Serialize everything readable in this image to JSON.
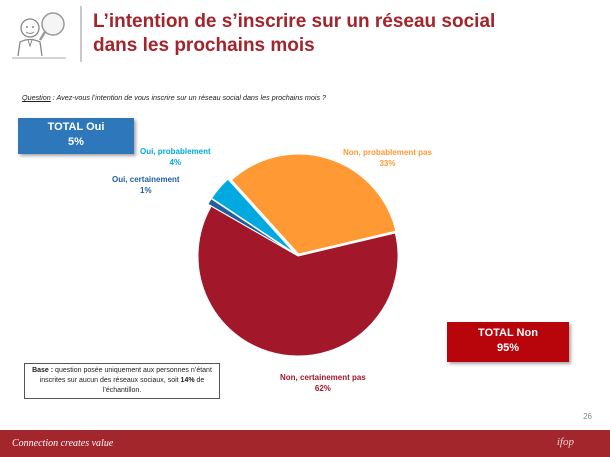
{
  "title": {
    "line1": "L’intention de s’inscrire sur un réseau social",
    "line2": "dans les prochains mois"
  },
  "question": {
    "label": "Question",
    "text": " : Avez-vous l’intention de vous inscrire sur un réseau social dans les prochains mois ?"
  },
  "total_oui": {
    "label": "TOTAL Oui",
    "value": "5%"
  },
  "total_non": {
    "label": "TOTAL Non",
    "value": "95%"
  },
  "base_note": {
    "bold": "Base :",
    "text1": " question posée uniquement aux personnes n’étant inscrites sur aucun des réseaux sociaux, soit ",
    "bold2": "14%",
    "text2": " de l’échantillon."
  },
  "page_number": "26",
  "footer": {
    "tagline": "Connection creates value",
    "logo_text": "ifop"
  },
  "colors": {
    "brand": "#a3242b",
    "oui_probablement": "#00a9e0",
    "oui_certainement": "#1f5f9e",
    "non_probablement": "#ff9933",
    "non_certainement": "#a2172a",
    "oui_box": "#2e77bb",
    "non_box": "#b8050b"
  },
  "chart_data": {
    "type": "pie",
    "title": "",
    "slices": [
      {
        "name": "Oui, certainement",
        "value": 1,
        "label": "1%",
        "color": "#1f5f9e"
      },
      {
        "name": "Oui, probablement",
        "value": 4,
        "label": "4%",
        "color": "#00a9e0"
      },
      {
        "name": "Non, probablement pas",
        "value": 33,
        "label": "33%",
        "color": "#ff9933"
      },
      {
        "name": "Non, certainement pas",
        "value": 62,
        "label": "62%",
        "color": "#a2172a"
      }
    ]
  }
}
